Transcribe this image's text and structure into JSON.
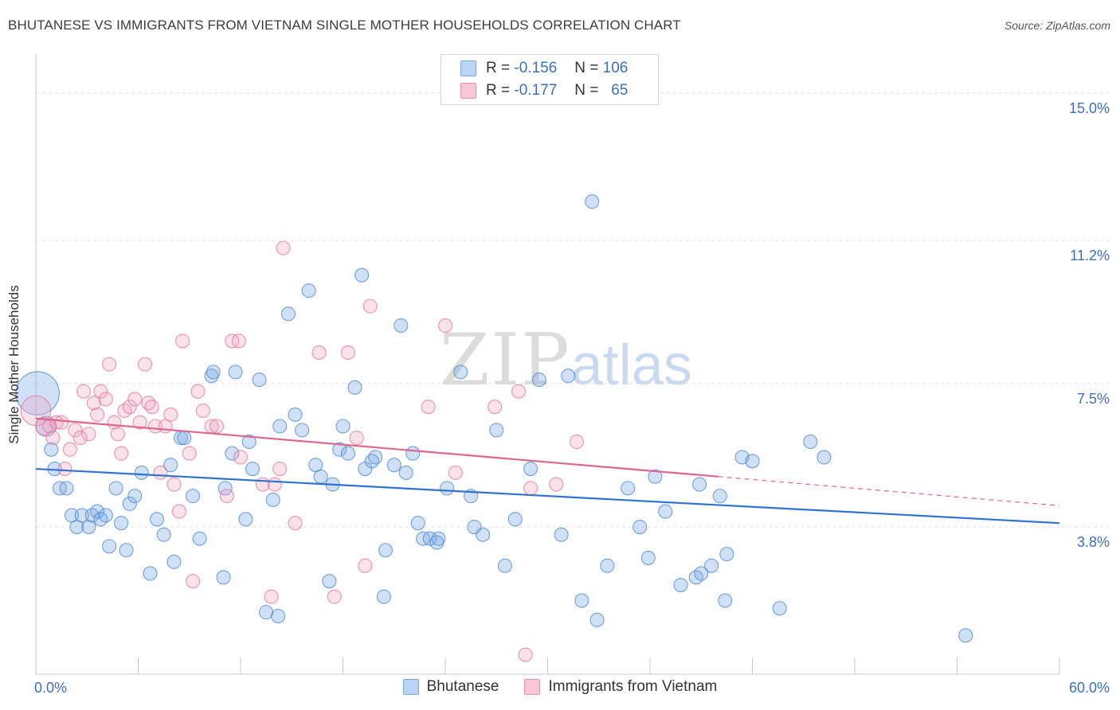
{
  "title": "BHUTANESE VS IMMIGRANTS FROM VIETNAM SINGLE MOTHER HOUSEHOLDS CORRELATION CHART",
  "source": "Source: ZipAtlas.com",
  "legend": {
    "rows": [
      {
        "r_label": "R =",
        "r_value": "-0.156",
        "n_label": "N =",
        "n_value": "106",
        "color": "#7aa8e6",
        "fill": "#bcd4f5"
      },
      {
        "r_label": "R =",
        "r_value": "-0.177",
        "n_label": "N =",
        "n_value": "65",
        "color": "#ea8fb0",
        "fill": "#f8c7d8"
      }
    ]
  },
  "watermark": {
    "zip": "ZIP",
    "atlas": "atlas"
  },
  "colors": {
    "blue": "#4f8bd8",
    "blue_fill": "rgba(120,168,230,0.35)",
    "pink": "#e8789f",
    "pink_fill": "rgba(240,160,190,0.30)",
    "blue_line": "#2f72d0",
    "pink_line": "#e0668f",
    "tick_text": "#3a6fc4",
    "grid": "#dcdcdc"
  },
  "chart_data": {
    "type": "scatter",
    "title": "BHUTANESE VS IMMIGRANTS FROM VIETNAM SINGLE MOTHER HOUSEHOLDS CORRELATION CHART",
    "xlabel": "",
    "ylabel": "Single Mother Households",
    "xlim": [
      0,
      60
    ],
    "ylim": [
      0,
      15.8
    ],
    "x_tick_labels": [
      "0.0%",
      "60.0%"
    ],
    "y_ticks": [
      3.8,
      7.5,
      11.2,
      15.0
    ],
    "y_tick_labels": [
      "3.8%",
      "7.5%",
      "11.2%",
      "15.0%"
    ],
    "grid": "horizontal dashed",
    "legend_position": "bottom",
    "series": [
      {
        "name": "Bhutanese",
        "color": "#4f8bd8",
        "trend": {
          "x": [
            0,
            60
          ],
          "y": [
            5.3,
            3.9
          ]
        },
        "points": [
          [
            0.1,
            7.25,
            3.2
          ],
          [
            0.6,
            6.4,
            1.5
          ],
          [
            0.9,
            5.8,
            1
          ],
          [
            1.1,
            5.3,
            1
          ],
          [
            1.4,
            4.8,
            1
          ],
          [
            1.8,
            4.8,
            1
          ],
          [
            2.1,
            4.1,
            1
          ],
          [
            2.4,
            3.8,
            1
          ],
          [
            2.7,
            4.1,
            1
          ],
          [
            3.1,
            3.8,
            1
          ],
          [
            3.3,
            4.1,
            1
          ],
          [
            3.6,
            4.2,
            1
          ],
          [
            3.8,
            4.0,
            1
          ],
          [
            4.1,
            4.1,
            1
          ],
          [
            4.3,
            3.3,
            1
          ],
          [
            4.7,
            4.8,
            1
          ],
          [
            5.0,
            3.9,
            1
          ],
          [
            5.3,
            3.2,
            1
          ],
          [
            5.5,
            4.4,
            1
          ],
          [
            5.8,
            4.6,
            1
          ],
          [
            6.2,
            5.2,
            1
          ],
          [
            6.7,
            2.6,
            1
          ],
          [
            7.1,
            4.0,
            1
          ],
          [
            7.5,
            3.6,
            1
          ],
          [
            7.9,
            5.4,
            1
          ],
          [
            8.1,
            2.9,
            1
          ],
          [
            8.5,
            6.1,
            1
          ],
          [
            8.7,
            6.1,
            1
          ],
          [
            9.2,
            4.6,
            1
          ],
          [
            9.6,
            3.5,
            1
          ],
          [
            10.3,
            7.7,
            1
          ],
          [
            10.4,
            7.8,
            1
          ],
          [
            11.0,
            2.5,
            1
          ],
          [
            11.1,
            4.8,
            1
          ],
          [
            11.5,
            5.7,
            1
          ],
          [
            11.7,
            7.8,
            1
          ],
          [
            12.3,
            4.0,
            1
          ],
          [
            12.5,
            6.0,
            1
          ],
          [
            12.7,
            5.3,
            1
          ],
          [
            13.1,
            7.6,
            1
          ],
          [
            13.5,
            1.6,
            1
          ],
          [
            13.9,
            4.5,
            1
          ],
          [
            14.2,
            1.5,
            1
          ],
          [
            14.3,
            6.4,
            1
          ],
          [
            14.8,
            9.3,
            1
          ],
          [
            15.2,
            6.7,
            1
          ],
          [
            15.6,
            6.3,
            1
          ],
          [
            16.0,
            9.9,
            1
          ],
          [
            16.4,
            5.4,
            1
          ],
          [
            16.7,
            5.1,
            1
          ],
          [
            17.2,
            2.4,
            1
          ],
          [
            17.4,
            4.9,
            1
          ],
          [
            17.8,
            5.8,
            1
          ],
          [
            18.0,
            6.4,
            1
          ],
          [
            18.3,
            5.7,
            1
          ],
          [
            18.7,
            7.4,
            1
          ],
          [
            19.1,
            10.3,
            1
          ],
          [
            19.3,
            5.3,
            1
          ],
          [
            19.7,
            5.5,
            1
          ],
          [
            19.9,
            5.6,
            1
          ],
          [
            20.5,
            3.2,
            1
          ],
          [
            20.4,
            2.0,
            1
          ],
          [
            21.0,
            5.4,
            1
          ],
          [
            21.4,
            9.0,
            1
          ],
          [
            21.7,
            5.2,
            1
          ],
          [
            22.1,
            5.7,
            1
          ],
          [
            22.4,
            3.9,
            1
          ],
          [
            22.7,
            3.5,
            1
          ],
          [
            23.1,
            3.5,
            1
          ],
          [
            23.6,
            3.5,
            1
          ],
          [
            23.5,
            3.4,
            1
          ],
          [
            24.1,
            4.8,
            1
          ],
          [
            24.9,
            7.8,
            1
          ],
          [
            25.5,
            4.6,
            1
          ],
          [
            25.7,
            3.8,
            1
          ],
          [
            26.2,
            3.6,
            1
          ],
          [
            27.0,
            6.3,
            1
          ],
          [
            27.5,
            2.8,
            1
          ],
          [
            28.1,
            4.0,
            1
          ],
          [
            29.0,
            5.3,
            1
          ],
          [
            29.5,
            7.6,
            1
          ],
          [
            30.8,
            3.6,
            1
          ],
          [
            31.2,
            7.7,
            1
          ],
          [
            32.0,
            1.9,
            1
          ],
          [
            32.6,
            12.2,
            1
          ],
          [
            32.9,
            1.4,
            1
          ],
          [
            33.5,
            2.8,
            1
          ],
          [
            34.7,
            4.8,
            1
          ],
          [
            35.4,
            3.8,
            1
          ],
          [
            35.9,
            3.0,
            1
          ],
          [
            36.3,
            5.1,
            1
          ],
          [
            36.9,
            4.2,
            1
          ],
          [
            37.8,
            2.3,
            1
          ],
          [
            38.7,
            2.5,
            1
          ],
          [
            39.0,
            2.6,
            1
          ],
          [
            38.9,
            4.9,
            1
          ],
          [
            39.6,
            2.8,
            1
          ],
          [
            40.1,
            4.6,
            1
          ],
          [
            40.4,
            1.9,
            1
          ],
          [
            40.5,
            3.1,
            1
          ],
          [
            41.4,
            5.6,
            1
          ],
          [
            42.0,
            5.5,
            1
          ],
          [
            43.6,
            1.7,
            1
          ],
          [
            45.4,
            6.0,
            1
          ],
          [
            46.2,
            5.6,
            1
          ],
          [
            54.5,
            1.0,
            1
          ]
        ]
      },
      {
        "name": "Immigrants from Vietnam",
        "color": "#e8789f",
        "trend": {
          "x": [
            0,
            40
          ],
          "y": [
            6.6,
            5.1
          ]
        },
        "trend_dashed": {
          "x": [
            40,
            60
          ],
          "y": [
            5.1,
            4.35
          ]
        },
        "points": [
          [
            0.0,
            6.8,
            2.2
          ],
          [
            0.5,
            6.4,
            1.3
          ],
          [
            0.8,
            6.4,
            1
          ],
          [
            1.0,
            6.1,
            1
          ],
          [
            1.2,
            6.5,
            1
          ],
          [
            1.5,
            6.5,
            1
          ],
          [
            1.7,
            5.3,
            1
          ],
          [
            2.0,
            5.8,
            1
          ],
          [
            2.3,
            6.3,
            1
          ],
          [
            2.6,
            6.1,
            1
          ],
          [
            2.8,
            7.3,
            1
          ],
          [
            3.1,
            6.2,
            1
          ],
          [
            3.4,
            7.0,
            1
          ],
          [
            3.6,
            6.7,
            1
          ],
          [
            3.8,
            7.3,
            1
          ],
          [
            4.1,
            7.1,
            1
          ],
          [
            4.3,
            8.0,
            1
          ],
          [
            4.6,
            6.5,
            1
          ],
          [
            4.8,
            6.2,
            1
          ],
          [
            5.0,
            5.7,
            1
          ],
          [
            5.2,
            6.8,
            1
          ],
          [
            5.5,
            6.9,
            1
          ],
          [
            5.8,
            7.1,
            1
          ],
          [
            6.1,
            6.5,
            1
          ],
          [
            6.4,
            8.0,
            1
          ],
          [
            6.6,
            7.0,
            1
          ],
          [
            6.8,
            6.9,
            1
          ],
          [
            7.0,
            6.4,
            1
          ],
          [
            7.3,
            5.2,
            1
          ],
          [
            7.6,
            6.4,
            1
          ],
          [
            7.9,
            6.7,
            1
          ],
          [
            8.1,
            4.9,
            1
          ],
          [
            8.4,
            4.2,
            1
          ],
          [
            8.6,
            8.6,
            1
          ],
          [
            9.0,
            5.7,
            1
          ],
          [
            9.2,
            2.4,
            1
          ],
          [
            9.5,
            7.3,
            1
          ],
          [
            9.8,
            6.8,
            1
          ],
          [
            10.3,
            6.4,
            1
          ],
          [
            10.6,
            6.4,
            1
          ],
          [
            11.2,
            4.6,
            1
          ],
          [
            11.5,
            8.6,
            1
          ],
          [
            11.9,
            8.6,
            1
          ],
          [
            12.0,
            5.6,
            1
          ],
          [
            13.3,
            4.9,
            1
          ],
          [
            13.8,
            2.0,
            1
          ],
          [
            14.0,
            4.9,
            1
          ],
          [
            14.3,
            5.3,
            1
          ],
          [
            14.5,
            11.0,
            1
          ],
          [
            15.2,
            3.9,
            1
          ],
          [
            16.6,
            8.3,
            1
          ],
          [
            17.5,
            2.0,
            1
          ],
          [
            18.3,
            8.3,
            1
          ],
          [
            18.8,
            6.1,
            1
          ],
          [
            19.3,
            2.8,
            1
          ],
          [
            19.6,
            9.5,
            1
          ],
          [
            23.0,
            6.9,
            1
          ],
          [
            24.0,
            9.0,
            1
          ],
          [
            24.6,
            5.2,
            1
          ],
          [
            26.9,
            6.9,
            1
          ],
          [
            28.3,
            7.3,
            1
          ],
          [
            28.7,
            0.5,
            1
          ],
          [
            29.0,
            4.8,
            1
          ],
          [
            30.5,
            4.9,
            1
          ],
          [
            31.7,
            6.0,
            1
          ]
        ]
      }
    ]
  }
}
